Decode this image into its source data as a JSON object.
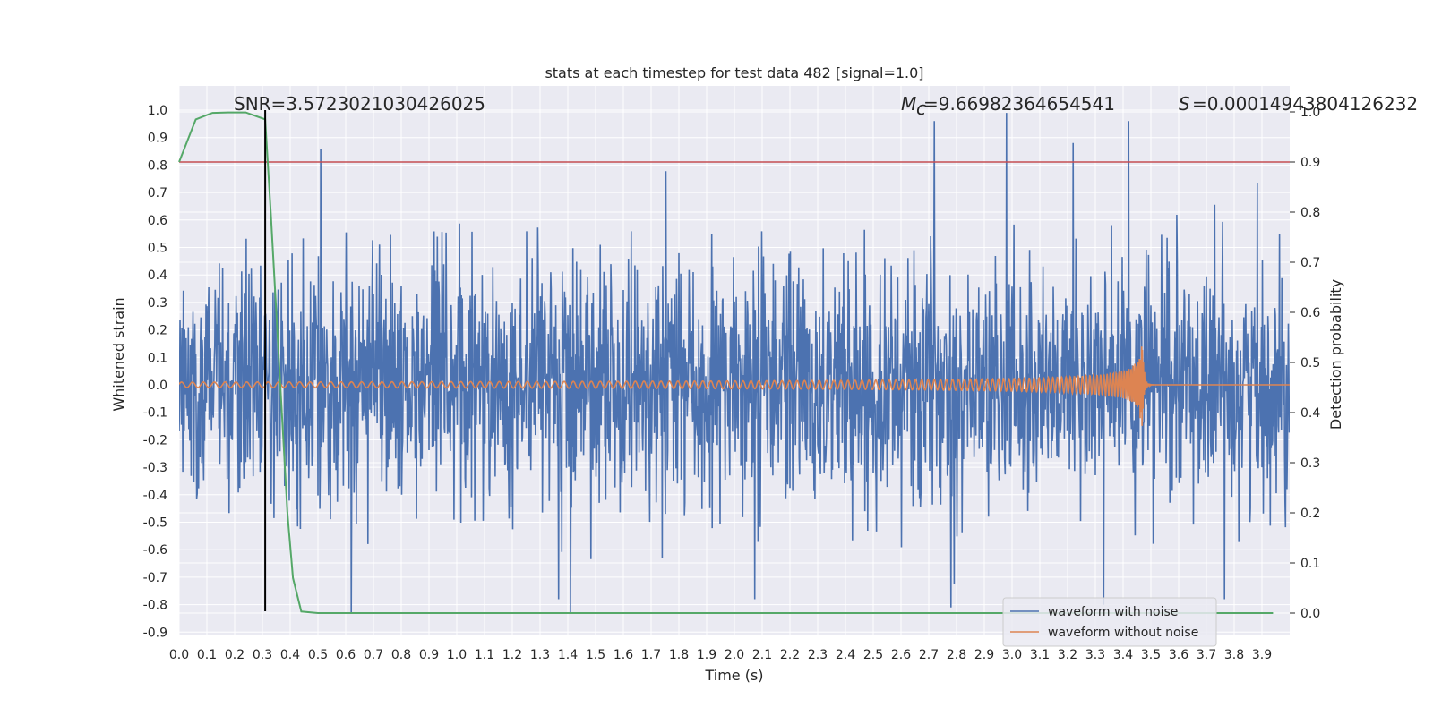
{
  "chart_data": {
    "type": "line",
    "title": "stats at each timestep for test data 482 [signal=1.0]",
    "xlabel": "Time (s)",
    "ylabel": "Whitened strain",
    "y2label": "Detection probability",
    "xlim": [
      0.0,
      4.0
    ],
    "ylim": [
      -0.95,
      1.08
    ],
    "y2lim": [
      -0.05,
      1.0
    ],
    "x_ticks": [
      "0.0",
      "0.1",
      "0.2",
      "0.3",
      "0.4",
      "0.5",
      "0.6",
      "0.7",
      "0.8",
      "0.9",
      "1.0",
      "1.1",
      "1.2",
      "1.3",
      "1.4",
      "1.5",
      "1.6",
      "1.7",
      "1.8",
      "1.9",
      "2.0",
      "2.1",
      "2.2",
      "2.3",
      "2.4",
      "2.5",
      "2.6",
      "2.7",
      "2.8",
      "2.9",
      "3.0",
      "3.1",
      "3.2",
      "3.3",
      "3.4",
      "3.5",
      "3.6",
      "3.7",
      "3.8",
      "3.9"
    ],
    "y_ticks": [
      "1.0",
      "0.9",
      "0.8",
      "0.7",
      "0.6",
      "0.5",
      "0.4",
      "0.3",
      "0.2",
      "0.1",
      "0.0",
      "-0.1",
      "-0.2",
      "-0.3",
      "-0.4",
      "-0.5",
      "-0.6",
      "-0.7",
      "-0.8",
      "-0.9"
    ],
    "y2_ticks": [
      "1.0",
      "0.9",
      "0.8",
      "0.7",
      "0.6",
      "0.5",
      "0.4",
      "0.3",
      "0.2",
      "0.1",
      "0.0"
    ],
    "grid": true,
    "legend_position": "bottom-right",
    "series": [
      {
        "name": "waveform with noise",
        "color": "#4c72b0",
        "axis": "left",
        "description_values": "dense noise between roughly -0.85 and 0.98",
        "peaks": [
          {
            "x": 0.51,
            "y": 0.86
          },
          {
            "x": 0.62,
            "y": -0.83
          },
          {
            "x": 1.41,
            "y": -0.83
          },
          {
            "x": 2.72,
            "y": 0.96
          },
          {
            "x": 2.78,
            "y": -0.81
          },
          {
            "x": 2.98,
            "y": 0.99
          },
          {
            "x": 3.22,
            "y": 0.88
          },
          {
            "x": 3.33,
            "y": -0.8
          },
          {
            "x": 3.42,
            "y": 0.96
          }
        ]
      },
      {
        "name": "waveform without noise",
        "color": "#dd8452",
        "axis": "left",
        "chirp_start_amp": 0.01,
        "chirp_peak_time": 3.47,
        "chirp_peak_amp": 0.15
      },
      {
        "name": "",
        "color": "#55a868",
        "axis": "right",
        "x": [
          0.0,
          0.06,
          0.12,
          0.18,
          0.24,
          0.31,
          0.33,
          0.35,
          0.37,
          0.39,
          0.41,
          0.44,
          0.5,
          1.0,
          2.0,
          3.0,
          3.94
        ],
        "y": [
          0.9,
          0.985,
          0.998,
          0.999,
          0.999,
          0.985,
          0.8,
          0.6,
          0.4,
          0.2,
          0.07,
          0.003,
          0.0,
          0.0,
          0.0,
          0.0,
          0.0
        ]
      }
    ],
    "threshold": {
      "y2": 0.9,
      "color": "#c44e52"
    },
    "marker_line": {
      "x": 0.31,
      "color": "#000000"
    },
    "annotations": {
      "snr": "SNR=3.5723021030426025",
      "mc": "=9.66982364654541",
      "mc_symbol": "M",
      "mc_sub": "c",
      "s": "=0.00014943804126232",
      "s_symbol": "S"
    },
    "colors": {
      "background": "#eaeaf2",
      "grid": "#ffffff",
      "text": "#262626"
    }
  }
}
